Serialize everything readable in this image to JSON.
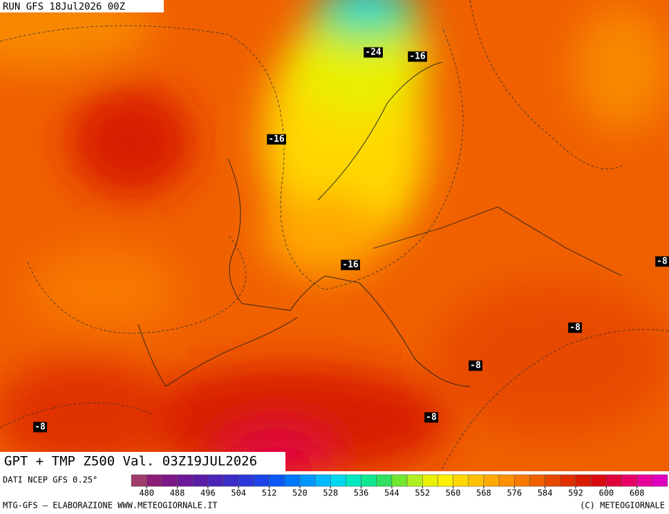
{
  "header": {
    "run": "RUN GFS 18Jul2026 00Z"
  },
  "map": {
    "title": "GPT + TMP Z500 Val. 03Z19JUL2026",
    "labels": [
      "-24",
      "-16",
      "-16",
      "-16",
      "-8",
      "-8",
      "-8",
      "-8",
      "-8"
    ]
  },
  "legend": {
    "source": "DATI NCEP GFS 0.25°"
  },
  "colorbar": {
    "ticks": [
      480,
      488,
      496,
      504,
      512,
      520,
      528,
      536,
      544,
      552,
      560,
      568,
      576,
      584,
      592,
      600,
      608
    ],
    "colors": [
      "#a03c6c",
      "#8c1c78",
      "#7c1888",
      "#6c1898",
      "#5c1ca8",
      "#4c24b8",
      "#3c2cc8",
      "#2c38d8",
      "#1c44e8",
      "#0c58f8",
      "#0078ff",
      "#0098ff",
      "#00b8ff",
      "#00d8f0",
      "#00e8c0",
      "#10e890",
      "#30e060",
      "#70e830",
      "#b0f020",
      "#e8f000",
      "#fff000",
      "#ffd800",
      "#ffc000",
      "#ffa800",
      "#ff9000",
      "#f87800",
      "#f06000",
      "#e84800",
      "#e03000",
      "#d81c00",
      "#d80a10",
      "#e0003c",
      "#e80068",
      "#e80098",
      "#e000c0"
    ]
  },
  "footer": {
    "left": "MTG-GFS — ELABORAZIONE WWW.METEOGIORNALE.IT",
    "right": "(C) METEOGIORNALE"
  }
}
